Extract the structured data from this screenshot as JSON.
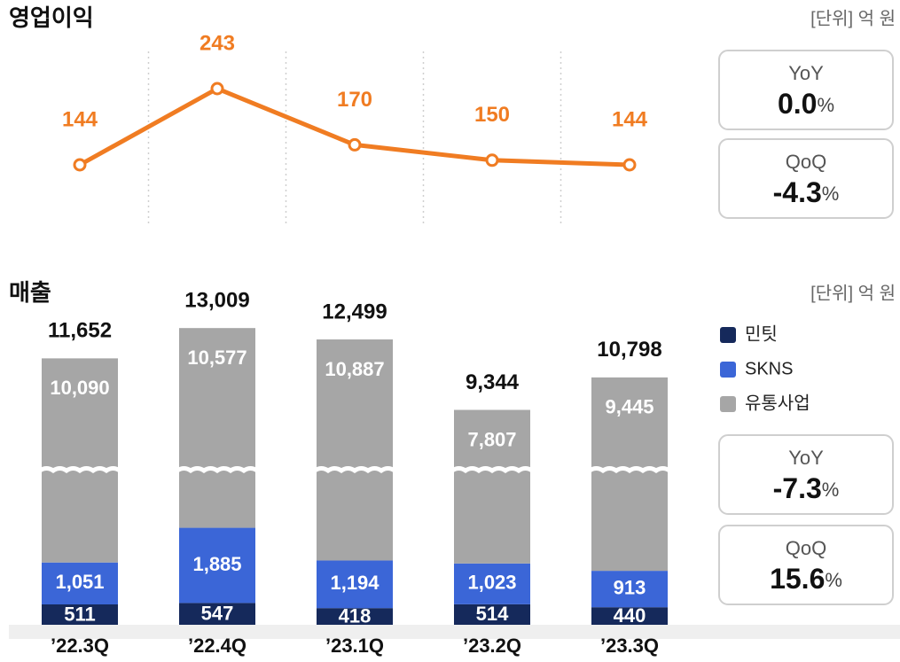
{
  "chart_data": [
    {
      "type": "line",
      "title": "영업이익",
      "unit_note": "[단위] 억 원",
      "values": [
        144,
        243,
        170,
        150,
        144
      ],
      "color": "#f07c22",
      "stats": [
        {
          "label": "YoY",
          "value": "0.0",
          "unit": "%"
        },
        {
          "label": "QoQ",
          "value": "-4.3",
          "unit": "%"
        }
      ]
    },
    {
      "type": "stacked_bar",
      "title": "매출",
      "unit_note": "[단위] 억 원",
      "categories": [
        "’22.3Q",
        "’22.4Q",
        "’23.1Q",
        "’23.2Q",
        "’23.3Q"
      ],
      "series": [
        {
          "name": "민팃",
          "color": "#15295b",
          "values": [
            511,
            547,
            418,
            514,
            440
          ],
          "value_labels": [
            "511",
            "547",
            "418",
            "514",
            "440"
          ]
        },
        {
          "name": "SKNS",
          "color": "#3b66d7",
          "values": [
            1051,
            1885,
            1194,
            1023,
            913
          ],
          "value_labels": [
            "1,051",
            "1,885",
            "1,194",
            "1,023",
            "913"
          ]
        },
        {
          "name": "유통사업",
          "color": "#a6a6a6",
          "values": [
            10090,
            10577,
            10887,
            7807,
            9445
          ],
          "value_labels": [
            "10,090",
            "10,577",
            "10,887",
            "7,807",
            "9,445"
          ]
        }
      ],
      "totals": [
        11652,
        13009,
        12499,
        9344,
        10798
      ],
      "total_labels": [
        "11,652",
        "13,009",
        "12,499",
        "9,344",
        "10,798"
      ],
      "stats": [
        {
          "label": "YoY",
          "value": "-7.3",
          "unit": "%"
        },
        {
          "label": "QoQ",
          "value": "15.6",
          "unit": "%"
        }
      ]
    }
  ]
}
